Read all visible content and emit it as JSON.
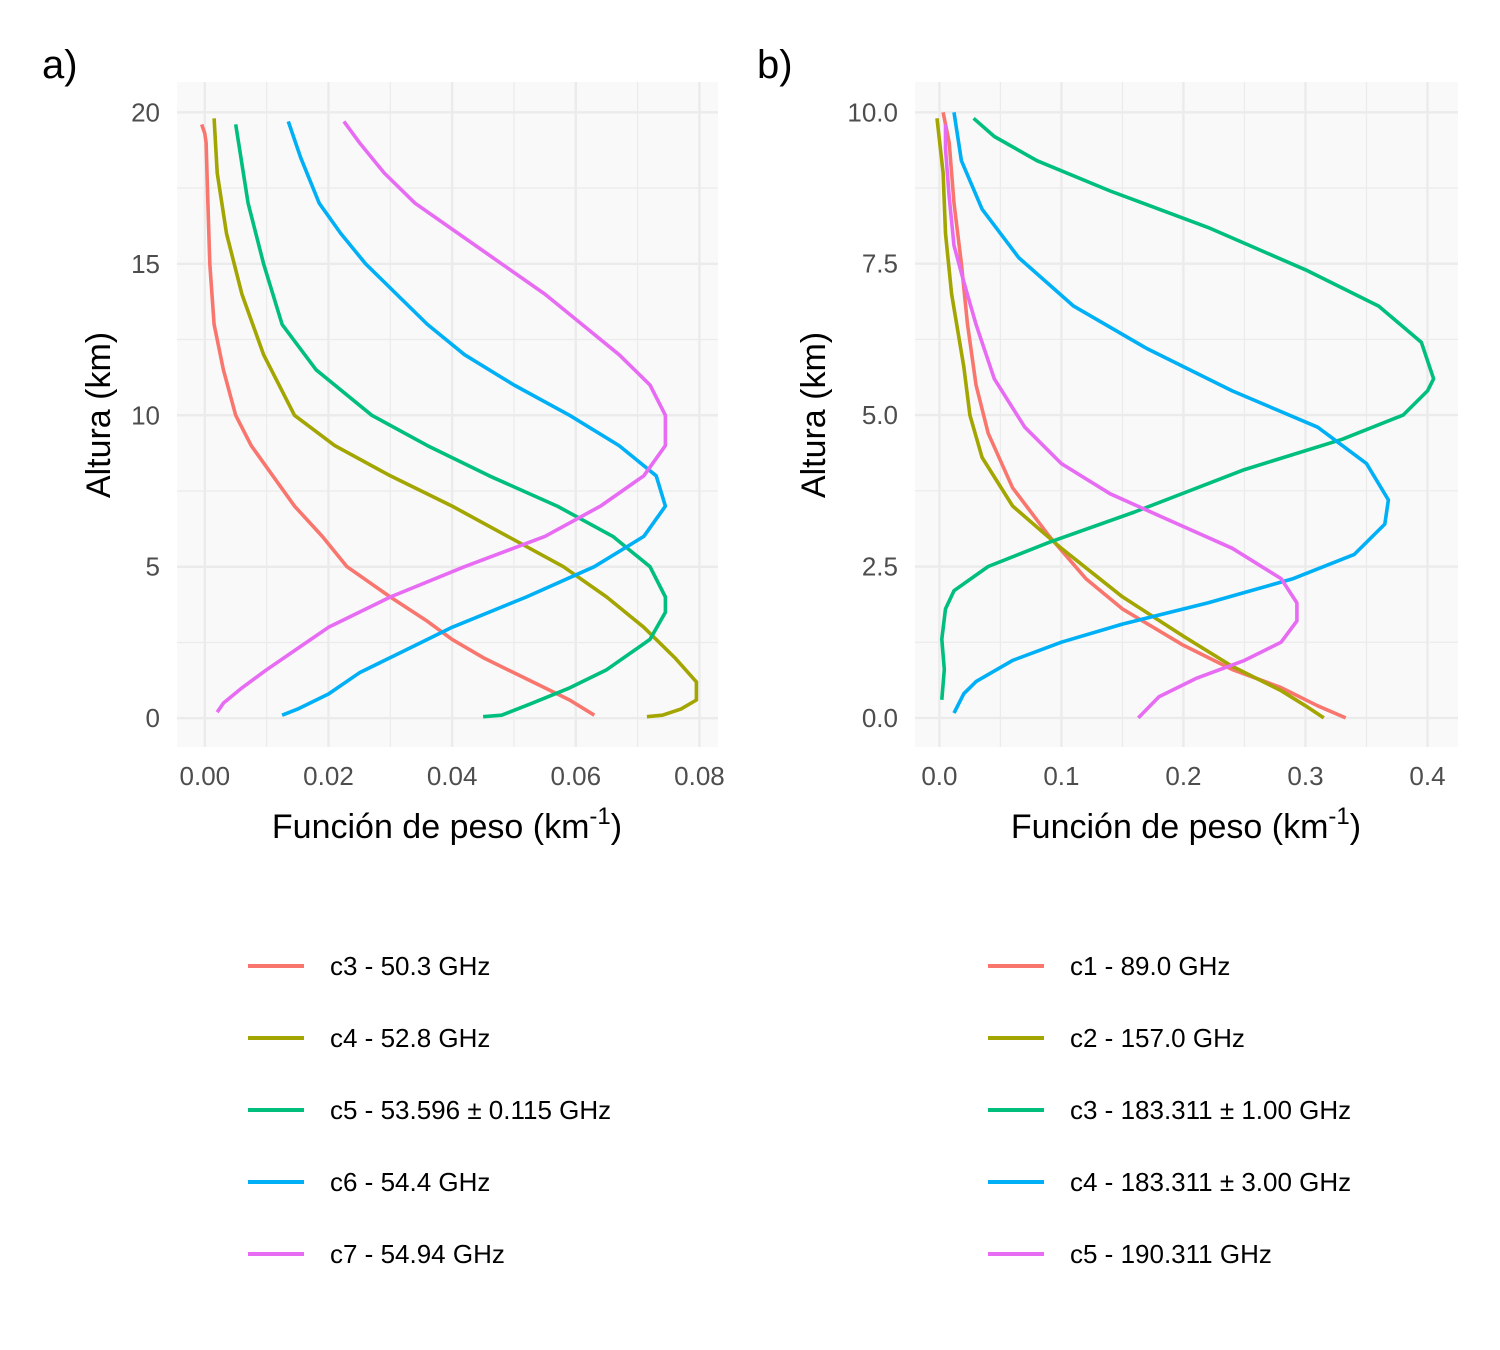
{
  "colors": [
    "#f8766d",
    "#a3a500",
    "#00bf7d",
    "#00b0f6",
    "#e76bf3"
  ],
  "chart_data": [
    {
      "type": "line",
      "tag": "a)",
      "xlabel": "Función de peso (km",
      "xlabel_sup": "-1",
      "xlabel_close": ")",
      "ylabel": "Altura (km)",
      "xlim": [
        -0.0045,
        0.083
      ],
      "ylim": [
        -0.95,
        21.0
      ],
      "x_ticks": [
        0,
        0.02,
        0.04,
        0.06,
        0.08
      ],
      "x_tick_labels": [
        "0.00",
        "0.02",
        "0.04",
        "0.06",
        "0.08"
      ],
      "y_ticks": [
        0,
        5,
        10,
        15,
        20
      ],
      "y_tick_labels": [
        "0",
        "5",
        "10",
        "15",
        "20"
      ],
      "grid": true,
      "legend_position": "bottom",
      "series": [
        {
          "name": "c3 - 50.3 GHz",
          "points": [
            [
              0.063,
              0.1
            ],
            [
              0.059,
              0.6
            ],
            [
              0.055,
              1.0
            ],
            [
              0.05,
              1.5
            ],
            [
              0.045,
              2.0
            ],
            [
              0.04,
              2.6
            ],
            [
              0.036,
              3.2
            ],
            [
              0.03,
              4.0
            ],
            [
              0.023,
              5.0
            ],
            [
              0.019,
              6.0
            ],
            [
              0.0145,
              7.0
            ],
            [
              0.011,
              8.0
            ],
            [
              0.0075,
              9.0
            ],
            [
              0.005,
              10.0
            ],
            [
              0.003,
              11.5
            ],
            [
              0.0015,
              13.0
            ],
            [
              0.0008,
              15.0
            ],
            [
              0.0005,
              17.0
            ],
            [
              0.0002,
              19.0
            ],
            [
              0.0,
              19.3
            ],
            [
              -0.0005,
              19.6
            ]
          ]
        },
        {
          "name": "c4 - 52.8 GHz",
          "points": [
            [
              0.0715,
              0.05
            ],
            [
              0.074,
              0.1
            ],
            [
              0.077,
              0.3
            ],
            [
              0.0795,
              0.6
            ],
            [
              0.0795,
              1.2
            ],
            [
              0.076,
              2.0
            ],
            [
              0.071,
              3.0
            ],
            [
              0.065,
              4.0
            ],
            [
              0.058,
              5.0
            ],
            [
              0.049,
              6.0
            ],
            [
              0.04,
              7.0
            ],
            [
              0.03,
              8.0
            ],
            [
              0.021,
              9.0
            ],
            [
              0.0145,
              10.0
            ],
            [
              0.0095,
              12.0
            ],
            [
              0.006,
              14.0
            ],
            [
              0.0035,
              16.0
            ],
            [
              0.002,
              18.0
            ],
            [
              0.0015,
              19.8
            ]
          ]
        },
        {
          "name": "c5 - 53.596 ± 0.115 GHz",
          "points": [
            [
              0.045,
              0.05
            ],
            [
              0.048,
              0.1
            ],
            [
              0.053,
              0.5
            ],
            [
              0.059,
              1.0
            ],
            [
              0.065,
              1.6
            ],
            [
              0.072,
              2.6
            ],
            [
              0.0745,
              3.5
            ],
            [
              0.0745,
              4.0
            ],
            [
              0.072,
              5.0
            ],
            [
              0.066,
              6.0
            ],
            [
              0.057,
              7.0
            ],
            [
              0.046,
              8.0
            ],
            [
              0.036,
              9.0
            ],
            [
              0.027,
              10.0
            ],
            [
              0.018,
              11.5
            ],
            [
              0.0125,
              13.0
            ],
            [
              0.0095,
              15.0
            ],
            [
              0.007,
              17.0
            ],
            [
              0.005,
              19.6
            ]
          ]
        },
        {
          "name": "c6 - 54.4 GHz",
          "points": [
            [
              0.0125,
              0.1
            ],
            [
              0.015,
              0.3
            ],
            [
              0.02,
              0.8
            ],
            [
              0.025,
              1.5
            ],
            [
              0.03,
              2.0
            ],
            [
              0.04,
              3.0
            ],
            [
              0.052,
              4.0
            ],
            [
              0.063,
              5.0
            ],
            [
              0.071,
              6.0
            ],
            [
              0.0745,
              7.0
            ],
            [
              0.073,
              8.0
            ],
            [
              0.067,
              9.0
            ],
            [
              0.059,
              10.0
            ],
            [
              0.05,
              11.0
            ],
            [
              0.042,
              12.0
            ],
            [
              0.036,
              13.0
            ],
            [
              0.031,
              14.0
            ],
            [
              0.026,
              15.0
            ],
            [
              0.022,
              16.0
            ],
            [
              0.0185,
              17.0
            ],
            [
              0.0155,
              18.5
            ],
            [
              0.0135,
              19.7
            ]
          ]
        },
        {
          "name": "c7 - 54.94 GHz",
          "points": [
            [
              0.002,
              0.2
            ],
            [
              0.003,
              0.5
            ],
            [
              0.006,
              1.0
            ],
            [
              0.01,
              1.6
            ],
            [
              0.015,
              2.3
            ],
            [
              0.02,
              3.0
            ],
            [
              0.03,
              4.0
            ],
            [
              0.042,
              5.0
            ],
            [
              0.055,
              6.0
            ],
            [
              0.064,
              7.0
            ],
            [
              0.071,
              8.0
            ],
            [
              0.0745,
              9.0
            ],
            [
              0.0745,
              10.0
            ],
            [
              0.072,
              11.0
            ],
            [
              0.067,
              12.0
            ],
            [
              0.061,
              13.0
            ],
            [
              0.055,
              14.0
            ],
            [
              0.048,
              15.0
            ],
            [
              0.041,
              16.0
            ],
            [
              0.034,
              17.0
            ],
            [
              0.029,
              18.0
            ],
            [
              0.025,
              19.0
            ],
            [
              0.0225,
              19.7
            ]
          ]
        }
      ]
    },
    {
      "type": "line",
      "tag": "b)",
      "xlabel": "Función de peso (km",
      "xlabel_sup": "-1",
      "xlabel_close": ")",
      "ylabel": "Altura (km)",
      "xlim": [
        -0.02,
        0.425
      ],
      "ylim": [
        -0.48,
        10.5
      ],
      "x_ticks": [
        0,
        0.1,
        0.2,
        0.3,
        0.4
      ],
      "x_tick_labels": [
        "0.0",
        "0.1",
        "0.2",
        "0.3",
        "0.4"
      ],
      "y_ticks": [
        0,
        2.5,
        5,
        7.5,
        10
      ],
      "y_tick_labels": [
        "0.0",
        "2.5",
        "5.0",
        "7.5",
        "10.0"
      ],
      "grid": true,
      "legend_position": "bottom",
      "series": [
        {
          "name": "c1 - 89.0 GHz",
          "points": [
            [
              0.333,
              0.0
            ],
            [
              0.31,
              0.2
            ],
            [
              0.28,
              0.5
            ],
            [
              0.24,
              0.8
            ],
            [
              0.2,
              1.2
            ],
            [
              0.15,
              1.8
            ],
            [
              0.12,
              2.3
            ],
            [
              0.09,
              3.0
            ],
            [
              0.06,
              3.8
            ],
            [
              0.04,
              4.7
            ],
            [
              0.03,
              5.5
            ],
            [
              0.023,
              6.5
            ],
            [
              0.018,
              7.5
            ],
            [
              0.012,
              8.5
            ],
            [
              0.008,
              9.5
            ],
            [
              0.003,
              10.0
            ]
          ]
        },
        {
          "name": "c2 - 157.0 GHz",
          "points": [
            [
              0.315,
              0.0
            ],
            [
              0.3,
              0.2
            ],
            [
              0.28,
              0.45
            ],
            [
              0.24,
              0.85
            ],
            [
              0.2,
              1.35
            ],
            [
              0.15,
              2.0
            ],
            [
              0.1,
              2.8
            ],
            [
              0.06,
              3.5
            ],
            [
              0.035,
              4.3
            ],
            [
              0.025,
              5.0
            ],
            [
              0.02,
              5.8
            ],
            [
              0.01,
              7.0
            ],
            [
              0.005,
              8.0
            ],
            [
              0.003,
              9.0
            ],
            [
              -0.002,
              9.9
            ]
          ]
        },
        {
          "name": "c3 - 183.311 ± 1.00 GHz",
          "points": [
            [
              0.002,
              0.3
            ],
            [
              0.004,
              0.8
            ],
            [
              0.002,
              1.3
            ],
            [
              0.005,
              1.8
            ],
            [
              0.012,
              2.1
            ],
            [
              0.04,
              2.5
            ],
            [
              0.09,
              2.9
            ],
            [
              0.16,
              3.4
            ],
            [
              0.25,
              4.1
            ],
            [
              0.33,
              4.6
            ],
            [
              0.38,
              5.0
            ],
            [
              0.4,
              5.4
            ],
            [
              0.405,
              5.6
            ],
            [
              0.395,
              6.2
            ],
            [
              0.36,
              6.8
            ],
            [
              0.3,
              7.4
            ],
            [
              0.22,
              8.1
            ],
            [
              0.14,
              8.7
            ],
            [
              0.08,
              9.2
            ],
            [
              0.045,
              9.6
            ],
            [
              0.028,
              9.9
            ]
          ]
        },
        {
          "name": "c4 - 183.311 ± 3.00 GHz",
          "points": [
            [
              0.012,
              0.08
            ],
            [
              0.02,
              0.4
            ],
            [
              0.03,
              0.6
            ],
            [
              0.06,
              0.95
            ],
            [
              0.1,
              1.25
            ],
            [
              0.15,
              1.55
            ],
            [
              0.22,
              1.9
            ],
            [
              0.29,
              2.3
            ],
            [
              0.34,
              2.7
            ],
            [
              0.365,
              3.2
            ],
            [
              0.368,
              3.6
            ],
            [
              0.35,
              4.2
            ],
            [
              0.31,
              4.8
            ],
            [
              0.24,
              5.4
            ],
            [
              0.17,
              6.1
            ],
            [
              0.11,
              6.8
            ],
            [
              0.065,
              7.6
            ],
            [
              0.035,
              8.4
            ],
            [
              0.018,
              9.2
            ],
            [
              0.012,
              10.0
            ]
          ]
        },
        {
          "name": "c5 - 190.311 GHz",
          "points": [
            [
              0.163,
              0.0
            ],
            [
              0.18,
              0.35
            ],
            [
              0.21,
              0.65
            ],
            [
              0.25,
              0.95
            ],
            [
              0.28,
              1.25
            ],
            [
              0.293,
              1.6
            ],
            [
              0.293,
              1.9
            ],
            [
              0.28,
              2.3
            ],
            [
              0.24,
              2.8
            ],
            [
              0.19,
              3.25
            ],
            [
              0.14,
              3.7
            ],
            [
              0.1,
              4.2
            ],
            [
              0.07,
              4.8
            ],
            [
              0.045,
              5.6
            ],
            [
              0.03,
              6.5
            ],
            [
              0.02,
              7.2
            ],
            [
              0.012,
              7.8
            ],
            [
              0.008,
              8.6
            ],
            [
              0.005,
              9.4
            ],
            [
              0.005,
              9.8
            ]
          ]
        }
      ]
    }
  ]
}
